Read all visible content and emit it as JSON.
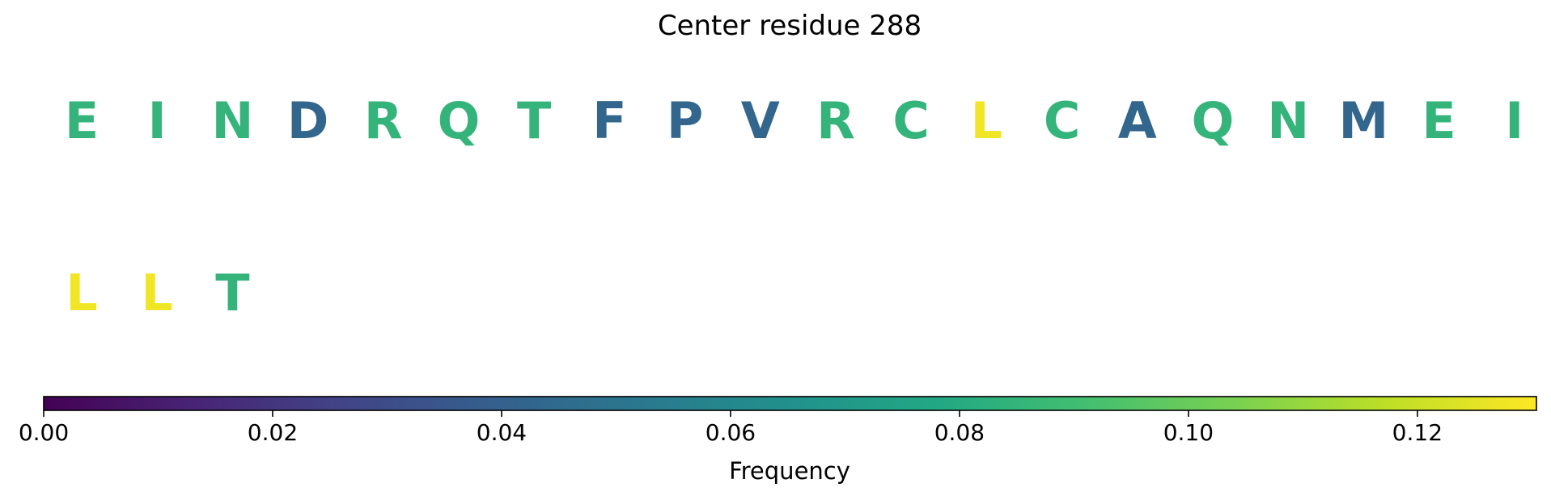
{
  "chart_data": {
    "type": "heatmap",
    "title": "Center residue 288",
    "residues": [
      {
        "letter": "E",
        "frequency": 0.085
      },
      {
        "letter": "I",
        "frequency": 0.085
      },
      {
        "letter": "N",
        "frequency": 0.085
      },
      {
        "letter": "D",
        "frequency": 0.043
      },
      {
        "letter": "R",
        "frequency": 0.085
      },
      {
        "letter": "Q",
        "frequency": 0.085
      },
      {
        "letter": "T",
        "frequency": 0.085
      },
      {
        "letter": "F",
        "frequency": 0.043
      },
      {
        "letter": "P",
        "frequency": 0.043
      },
      {
        "letter": "V",
        "frequency": 0.043
      },
      {
        "letter": "R",
        "frequency": 0.085
      },
      {
        "letter": "C",
        "frequency": 0.085
      },
      {
        "letter": "L",
        "frequency": 0.128
      },
      {
        "letter": "C",
        "frequency": 0.085
      },
      {
        "letter": "A",
        "frequency": 0.043
      },
      {
        "letter": "Q",
        "frequency": 0.085
      },
      {
        "letter": "N",
        "frequency": 0.085
      },
      {
        "letter": "M",
        "frequency": 0.043
      },
      {
        "letter": "E",
        "frequency": 0.085
      },
      {
        "letter": "I",
        "frequency": 0.085
      },
      {
        "letter": "L",
        "frequency": 0.128
      },
      {
        "letter": "L",
        "frequency": 0.128
      },
      {
        "letter": "T",
        "frequency": 0.085
      }
    ],
    "colorbar": {
      "colormap": "viridis",
      "range": [
        0,
        0.1304
      ],
      "ticks": [
        0.0,
        0.02,
        0.04,
        0.06,
        0.08,
        0.1,
        0.12
      ],
      "tick_labels": [
        "0.00",
        "0.02",
        "0.04",
        "0.06",
        "0.08",
        "0.10",
        "0.12"
      ],
      "label": "Frequency",
      "orientation": "horizontal",
      "placement": "bottom"
    }
  }
}
